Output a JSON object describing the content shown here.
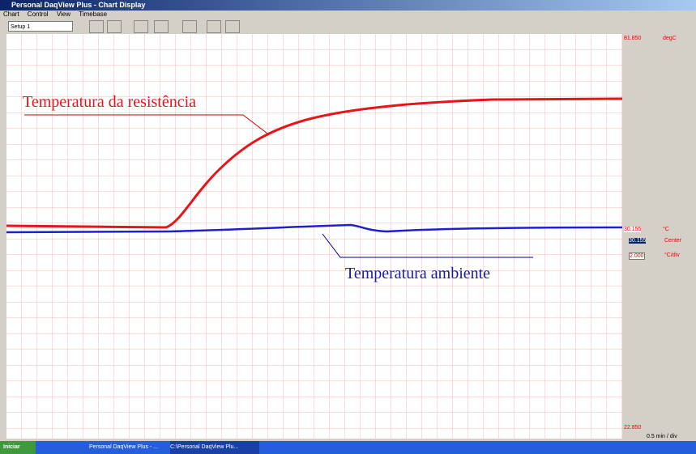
{
  "window": {
    "title": "Personal DaqView Plus - Chart Display",
    "menu": [
      "Chart",
      "Control",
      "View",
      "Timebase"
    ],
    "setup": "Setup 1"
  },
  "chart": {
    "annotations": [
      "Temperatura da resistência",
      "Temperatura ambiente"
    ],
    "side_labels": {
      "top": "81.850",
      "top_unit": "degC",
      "mid": "30.155",
      "mid_unit": "°C",
      "center": "30.155",
      "center_unit": "Center",
      "scale": "2.000",
      "scale_unit": "°C/div",
      "bottom": "22.850",
      "timebase": "0.5 min / div"
    }
  },
  "taskbar": {
    "start": "Iniciar",
    "items": [
      "Personal DaqView Plus - ...",
      "C:\\Personal DaqView Plu..."
    ]
  }
}
